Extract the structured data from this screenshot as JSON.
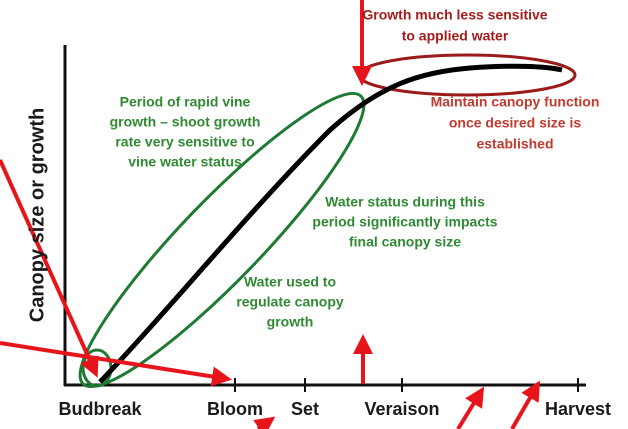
{
  "axes": {
    "y_label": "Canopy size or growth",
    "x_labels": [
      "Budbreak",
      "Bloom",
      "Set",
      "Veraison",
      "Harvest"
    ]
  },
  "annotations": [
    {
      "lines": [
        "Growth much less sensitive",
        "to applied water"
      ]
    },
    {
      "lines": [
        "Period of rapid vine",
        "growth – shoot growth",
        "rate very sensitive to",
        "vine water status"
      ]
    },
    {
      "lines": [
        "Maintain canopy function",
        "once desired size is",
        "established"
      ]
    },
    {
      "lines": [
        "Water status during this",
        "period significantly impacts",
        "final canopy size"
      ]
    },
    {
      "lines": [
        "Water used to",
        "regulate  canopy",
        "growth"
      ]
    }
  ]
}
